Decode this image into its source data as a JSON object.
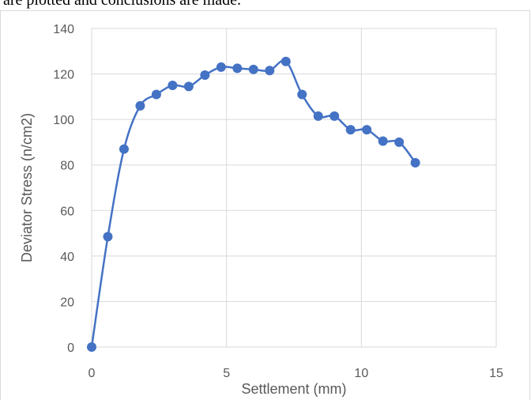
{
  "caption": {
    "text": "are plotted and conclusions are made."
  },
  "chart_data": {
    "type": "scatter",
    "title": "",
    "xlabel": "Settlement (mm)",
    "ylabel": "Deviator Stress (n/cm2)",
    "xlim": [
      0,
      15
    ],
    "ylim": [
      0,
      140
    ],
    "xticks": [
      0,
      5,
      10,
      15
    ],
    "yticks": [
      0,
      20,
      40,
      60,
      80,
      100,
      120,
      140
    ],
    "grid": true,
    "smooth_lines": true,
    "marker": "circle",
    "series": [
      {
        "color": "#4472c4",
        "x": [
          0,
          0.6,
          1.2,
          1.8,
          2.4,
          3.0,
          3.6,
          4.2,
          4.8,
          5.4,
          6.0,
          6.6,
          7.2,
          7.8,
          8.4,
          9.0,
          9.6,
          10.2,
          10.8,
          11.4,
          12.0
        ],
        "y": [
          0,
          48.5,
          87,
          106,
          111,
          115,
          114.5,
          119.5,
          123,
          122.5,
          122,
          121.5,
          125.5,
          111,
          101.5,
          101.5,
          95.5,
          95.5,
          90.5,
          90,
          81
        ]
      }
    ]
  }
}
